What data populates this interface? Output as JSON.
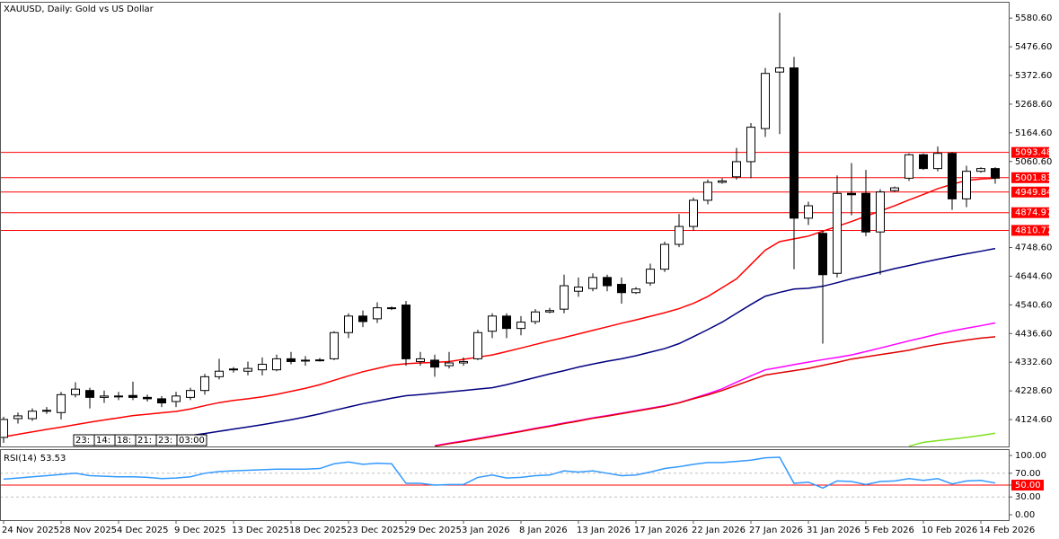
{
  "chart_data": [
    {
      "type": "candlestick",
      "title": "XAUUSD, Daily: Gold vs US Dollar",
      "categories": [
        "24 Nov 2025",
        null,
        null,
        null,
        "28 Nov 2025",
        null,
        null,
        null,
        "4 Dec 2025",
        null,
        null,
        null,
        "9 Dec 2025",
        null,
        null,
        null,
        "13 Dec 2025",
        null,
        null,
        null,
        "18 Dec 2025",
        null,
        null,
        null,
        "23 Dec 2025",
        null,
        null,
        null,
        "29 Dec 2025",
        null,
        null,
        null,
        "3 Jan 2026",
        null,
        null,
        null,
        "8 Jan 2026",
        null,
        null,
        null,
        "13 Jan 2026",
        null,
        null,
        null,
        "17 Jan 2026",
        null,
        null,
        null,
        "22 Jan 2026",
        null,
        null,
        null,
        "27 Jan 2026",
        null,
        null,
        null,
        "31 Jan 2026",
        null,
        null,
        null,
        "5 Feb 2026",
        null,
        null,
        null,
        "10 Feb 2026",
        null,
        null,
        null,
        "14 Feb 2026",
        null
      ],
      "open": [
        4060,
        4128,
        4128,
        4155,
        4150,
        4215,
        4230,
        4205,
        4208,
        4212,
        4205,
        4200,
        4190,
        4205,
        4230,
        4280,
        4305,
        4300,
        4305,
        4305,
        4345,
        4338,
        4340,
        4345,
        4440,
        4500,
        4490,
        4530,
        4540,
        4335,
        4340,
        4320,
        4330,
        4345,
        4445,
        4500,
        4455,
        4480,
        4515,
        4525,
        4590,
        4600,
        4640,
        4615,
        4585,
        4620,
        4670,
        4760,
        4825,
        4920,
        4985,
        5005,
        5060,
        5180,
        5385,
        5400,
        4855,
        4800,
        4655,
        4945,
        4945,
        4805,
        4955,
        5000,
        5085,
        5035,
        5090,
        4925,
        5025,
        5035
      ],
      "high": [
        4135,
        4150,
        4165,
        4170,
        4225,
        4260,
        4240,
        4230,
        4225,
        4262,
        4215,
        4210,
        4225,
        4240,
        4290,
        4345,
        4315,
        4335,
        4350,
        4360,
        4370,
        4355,
        4348,
        4445,
        4510,
        4520,
        4550,
        4535,
        4555,
        4370,
        4360,
        4370,
        4350,
        4450,
        4510,
        4510,
        4500,
        4525,
        4530,
        4650,
        4640,
        4655,
        4650,
        4640,
        4605,
        4690,
        4770,
        4870,
        4930,
        4995,
        5000,
        5110,
        5200,
        5400,
        5600,
        5440,
        4915,
        4810,
        5010,
        5055,
        5030,
        4960,
        4970,
        5090,
        5090,
        5115,
        5095,
        5045,
        5040,
        5040
      ],
      "low": [
        4040,
        4110,
        4120,
        4145,
        4125,
        4205,
        4165,
        4185,
        4195,
        4195,
        4190,
        4170,
        4170,
        4195,
        4215,
        4270,
        4295,
        4285,
        4285,
        4300,
        4325,
        4320,
        4335,
        4340,
        4420,
        4460,
        4475,
        4522,
        4320,
        4320,
        4280,
        4310,
        4320,
        4340,
        4420,
        4420,
        4430,
        4470,
        4510,
        4510,
        4570,
        4590,
        4590,
        4545,
        4580,
        4610,
        4660,
        4750,
        4810,
        4905,
        4980,
        4995,
        5000,
        5150,
        5160,
        4670,
        4830,
        4400,
        4640,
        4865,
        4790,
        4650,
        4950,
        4990,
        5030,
        5025,
        4885,
        4895,
        5020,
        4980
      ],
      "close": [
        4125,
        4138,
        4155,
        4158,
        4215,
        4235,
        4205,
        4210,
        4210,
        4205,
        4200,
        4185,
        4210,
        4230,
        4280,
        4300,
        4308,
        4310,
        4325,
        4345,
        4335,
        4340,
        4341,
        4440,
        4500,
        4480,
        4530,
        4528,
        4345,
        4345,
        4315,
        4330,
        4335,
        4440,
        4500,
        4455,
        4478,
        4515,
        4520,
        4610,
        4605,
        4640,
        4610,
        4585,
        4598,
        4670,
        4760,
        4825,
        4920,
        4985,
        4990,
        5060,
        5185,
        5380,
        5400,
        4855,
        4900,
        4650,
        4945,
        4940,
        4805,
        4950,
        4965,
        5085,
        5035,
        5090,
        4925,
        5025,
        5035,
        5000
      ],
      "up_color": "#ffffff",
      "down_color": "#000000",
      "edge_color": "#000000",
      "series": [
        {
          "color": "#ff0000",
          "values": [
            4062,
            4071,
            4080,
            4089,
            4097,
            4106,
            4115,
            4123,
            4131,
            4139,
            4144,
            4149,
            4154,
            4163,
            4175,
            4186,
            4194,
            4200,
            4207,
            4216,
            4227,
            4238,
            4251,
            4267,
            4283,
            4298,
            4310,
            4322,
            4327,
            4330,
            4332,
            4335,
            4343,
            4351,
            4359,
            4371,
            4384,
            4397,
            4410,
            4422,
            4435,
            4448,
            4461,
            4474,
            4486,
            4499,
            4512,
            4527,
            4546,
            4571,
            4603,
            4635,
            4687,
            4739,
            4770,
            4780,
            4790,
            4808,
            4825,
            4843,
            4862,
            4881,
            4900,
            4921,
            4941,
            4962,
            4978,
            4992,
            4997,
            5000
          ]
        },
        {
          "color": "#000080",
          "values": [
            null,
            null,
            null,
            null,
            null,
            null,
            null,
            null,
            null,
            null,
            null,
            null,
            4059,
            4067,
            4074,
            4082,
            4090,
            4098,
            4106,
            4115,
            4124,
            4134,
            4145,
            4158,
            4170,
            4182,
            4192,
            4202,
            4211,
            4215,
            4220,
            4225,
            4230,
            4235,
            4240,
            4251,
            4264,
            4277,
            4290,
            4302,
            4315,
            4326,
            4336,
            4345,
            4356,
            4369,
            4382,
            4400,
            4425,
            4451,
            4478,
            4510,
            4542,
            4572,
            4586,
            4598,
            4601,
            4608,
            4621,
            4635,
            4647,
            4659,
            4672,
            4683,
            4695,
            4706,
            4716,
            4726,
            4735,
            4745
          ]
        },
        {
          "color": "#ff00ff",
          "values": [
            null,
            null,
            null,
            null,
            null,
            null,
            null,
            null,
            null,
            null,
            null,
            null,
            null,
            null,
            null,
            null,
            null,
            null,
            null,
            null,
            null,
            null,
            null,
            null,
            null,
            null,
            null,
            null,
            null,
            null,
            4030,
            4039,
            4047,
            4056,
            4065,
            4074,
            4083,
            4093,
            4102,
            4112,
            4121,
            4131,
            4139,
            4148,
            4157,
            4166,
            4175,
            4186,
            4202,
            4218,
            4236,
            4260,
            4283,
            4305,
            4314,
            4324,
            4333,
            4342,
            4350,
            4359,
            4371,
            4384,
            4397,
            4410,
            4422,
            4435,
            4446,
            4456,
            4465,
            4475
          ]
        },
        {
          "color": "#e00000",
          "values": [
            null,
            null,
            null,
            null,
            null,
            null,
            null,
            null,
            null,
            null,
            null,
            null,
            null,
            null,
            null,
            null,
            null,
            null,
            null,
            null,
            null,
            null,
            null,
            null,
            null,
            null,
            null,
            null,
            null,
            null,
            4028,
            4037,
            4045,
            4054,
            4063,
            4072,
            4081,
            4091,
            4100,
            4110,
            4119,
            4129,
            4137,
            4146,
            4155,
            4164,
            4173,
            4185,
            4200,
            4214,
            4230,
            4249,
            4268,
            4286,
            4294,
            4302,
            4310,
            4321,
            4332,
            4344,
            4352,
            4360,
            4368,
            4376,
            4388,
            4397,
            4405,
            4413,
            4420,
            4425
          ]
        },
        {
          "color": "#7fe020",
          "values": [
            null,
            null,
            null,
            null,
            null,
            null,
            null,
            null,
            null,
            null,
            null,
            null,
            null,
            null,
            null,
            null,
            null,
            null,
            null,
            null,
            null,
            null,
            null,
            null,
            null,
            null,
            null,
            null,
            null,
            null,
            null,
            null,
            null,
            null,
            null,
            null,
            null,
            null,
            null,
            null,
            null,
            null,
            null,
            null,
            null,
            null,
            null,
            null,
            null,
            null,
            null,
            null,
            null,
            null,
            null,
            null,
            null,
            null,
            null,
            null,
            null,
            null,
            null,
            4028,
            4042,
            4048,
            4054,
            4060,
            4067,
            4075
          ]
        }
      ],
      "levels": [
        {
          "value": 5093.48,
          "color": "#ff0000"
        },
        {
          "value": 5001.83,
          "color": "#ff0000"
        },
        {
          "value": 4949.84,
          "color": "#ff0000"
        },
        {
          "value": 4874.97,
          "color": "#ff0000"
        },
        {
          "value": 4810.77,
          "color": "#ff0000"
        }
      ],
      "annotations": [
        "23:",
        "14:",
        "18:",
        "21:",
        "23:",
        "03:00"
      ],
      "ylim": [
        4027,
        5630
      ],
      "yticks": [
        {
          "value": 5580.6,
          "label": "5580.60"
        },
        {
          "value": 5476.6,
          "label": "5476.60"
        },
        {
          "value": 5372.6,
          "label": "5372.60"
        },
        {
          "value": 5268.6,
          "label": "5268.60"
        },
        {
          "value": 5164.6,
          "label": "5164.60"
        },
        {
          "value": 5060.6,
          "label": "5060.60"
        },
        {
          "value": 4748.6,
          "label": "4748.60"
        },
        {
          "value": 4644.6,
          "label": "4644.60"
        },
        {
          "value": 4540.6,
          "label": "4540.60"
        },
        {
          "value": 4436.6,
          "label": "4436.60"
        },
        {
          "value": 4332.6,
          "label": "4332.60"
        },
        {
          "value": 4228.6,
          "label": "4228.60"
        },
        {
          "value": 4124.6,
          "label": "4124.60"
        }
      ],
      "grid": false
    },
    {
      "type": "line",
      "title": "RSI(14)",
      "color": "#3399ff",
      "values": [
        60,
        62,
        64,
        66,
        68,
        70,
        66,
        65,
        64,
        64,
        63,
        61,
        62,
        64,
        70,
        73,
        74,
        75,
        76,
        77,
        77,
        77,
        78,
        86,
        89,
        85,
        87,
        86,
        53,
        53,
        50,
        51,
        51,
        63,
        67,
        62,
        63,
        66,
        67,
        74,
        72,
        74,
        70,
        66,
        67,
        72,
        78,
        81,
        85,
        88,
        88,
        90,
        92,
        96,
        97,
        53,
        55,
        45,
        57,
        56,
        51,
        56,
        57,
        61,
        58,
        61,
        52,
        57,
        58,
        53.53
      ],
      "levels": [
        {
          "value": 70,
          "color": "#c0c0c0",
          "dash": true
        },
        {
          "value": 50,
          "color": "#ff0000",
          "dash": false
        },
        {
          "value": 30,
          "color": "#c0c0c0",
          "dash": true
        }
      ],
      "ylim": [
        -10.6,
        107.6
      ],
      "yticks": [
        {
          "value": 100,
          "label": "100.00"
        },
        {
          "value": 70,
          "label": "70.00"
        },
        {
          "value": 50,
          "label": "50.00"
        },
        {
          "value": 30,
          "label": "30.00"
        },
        {
          "value": 0,
          "label": "0.00"
        }
      ]
    }
  ]
}
